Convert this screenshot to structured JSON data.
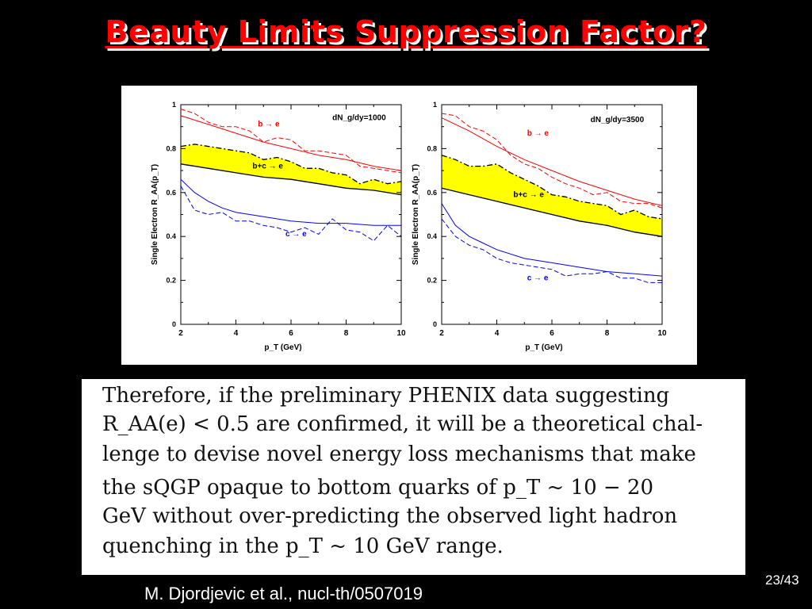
{
  "slide": {
    "title": "Beauty Limits Suppression Factor?",
    "citation": "M. Djordjevic et al., nucl-th/0507019",
    "page": "23/43"
  },
  "quote": {
    "lines": [
      "Therefore, if the preliminary PHENIX data suggesting",
      "R_AA(e) < 0.5 are confirmed, it will be a theoretical chal-",
      "lenge to devise novel energy loss mechanisms that make",
      "the sQGP opaque to bottom quarks of p_T ~ 10 − 20",
      "GeV without over-predicting the observed light hadron",
      "quenching in the p_T ~ 10 GeV range."
    ]
  },
  "colors": {
    "title": "#ff0000",
    "b_e": "#ff0000",
    "c_e": "#0000ff",
    "band": "#ffff00"
  },
  "chart_data": [
    {
      "type": "line",
      "annotation": "dN_g/dy=1000",
      "xlabel": "p_T (GeV)",
      "ylabel": "Single Electron R_AA(p_T)",
      "xlim": [
        2,
        10
      ],
      "ylim": [
        0,
        1
      ],
      "xticks": [
        2,
        4,
        6,
        8,
        10
      ],
      "yticks": [
        0,
        0.2,
        0.4,
        0.6,
        0.8,
        1
      ],
      "series": [
        {
          "name": "b → e",
          "style": "solid",
          "color": "#ff0000",
          "x": [
            2,
            3,
            4,
            5,
            6,
            7,
            8,
            9,
            10
          ],
          "y": [
            0.95,
            0.91,
            0.87,
            0.83,
            0.8,
            0.77,
            0.75,
            0.72,
            0.7
          ]
        },
        {
          "name": "b → e",
          "style": "dashed",
          "color": "#ff0000",
          "x": [
            2,
            2.5,
            3,
            3.5,
            4,
            4.5,
            5,
            5.5,
            6,
            6.5,
            7,
            7.5,
            8,
            8.5,
            9,
            9.5,
            10
          ],
          "y": [
            0.98,
            0.96,
            0.92,
            0.9,
            0.9,
            0.88,
            0.83,
            0.85,
            0.84,
            0.79,
            0.79,
            0.78,
            0.77,
            0.72,
            0.71,
            0.7,
            0.69
          ]
        },
        {
          "name": "b+c → e",
          "style": "dashdot",
          "color": "#000000",
          "x": [
            2,
            2.5,
            3,
            3.5,
            4,
            4.5,
            5,
            5.5,
            6,
            6.5,
            7,
            7.5,
            8,
            8.5,
            9,
            9.5,
            10
          ],
          "y": [
            0.81,
            0.82,
            0.81,
            0.8,
            0.79,
            0.78,
            0.75,
            0.76,
            0.74,
            0.71,
            0.71,
            0.69,
            0.68,
            0.64,
            0.66,
            0.64,
            0.65
          ]
        },
        {
          "name": "b+c → e",
          "style": "solid",
          "color": "#000000",
          "x": [
            2,
            3,
            4,
            5,
            6,
            7,
            8,
            9,
            10
          ],
          "y": [
            0.73,
            0.71,
            0.69,
            0.67,
            0.66,
            0.64,
            0.62,
            0.61,
            0.59
          ]
        },
        {
          "name": "c → e",
          "style": "solid",
          "color": "#0000ff",
          "x": [
            2,
            2.5,
            3,
            3.5,
            4,
            5,
            6,
            7,
            8,
            9,
            10
          ],
          "y": [
            0.66,
            0.6,
            0.56,
            0.53,
            0.51,
            0.49,
            0.47,
            0.46,
            0.46,
            0.45,
            0.45
          ]
        },
        {
          "name": "c → e",
          "style": "dashed",
          "color": "#0000ff",
          "x": [
            2,
            2.5,
            3,
            3.5,
            4,
            4.5,
            5,
            5.5,
            6,
            6.5,
            7,
            7.5,
            8,
            8.5,
            9,
            9.5,
            10
          ],
          "y": [
            0.63,
            0.52,
            0.5,
            0.51,
            0.47,
            0.47,
            0.45,
            0.44,
            0.42,
            0.44,
            0.41,
            0.48,
            0.43,
            0.42,
            0.38,
            0.45,
            0.4
          ]
        }
      ],
      "band": {
        "between": [
          "b+c → e dashed",
          "b+c → e solid"
        ],
        "fill": "#ffff00"
      },
      "labels": [
        {
          "text": "b → e",
          "x": 4.8,
          "y": 0.9,
          "color": "#ff0000"
        },
        {
          "text": "b+c → e",
          "x": 4.6,
          "y": 0.71,
          "color": "#000000"
        },
        {
          "text": "c → e",
          "x": 5.8,
          "y": 0.4,
          "color": "#0000ff"
        }
      ]
    },
    {
      "type": "line",
      "annotation": "dN_g/dy=3500",
      "xlabel": "p_T (GeV)",
      "ylabel": "Single Electron R_AA(p_T)",
      "xlim": [
        2,
        10
      ],
      "ylim": [
        0,
        1
      ],
      "xticks": [
        2,
        4,
        6,
        8,
        10
      ],
      "yticks": [
        0,
        0.2,
        0.4,
        0.6,
        0.8,
        1
      ],
      "series": [
        {
          "name": "b → e",
          "style": "solid",
          "color": "#ff0000",
          "x": [
            2,
            3,
            4,
            5,
            6,
            7,
            8,
            9,
            10
          ],
          "y": [
            0.94,
            0.88,
            0.81,
            0.75,
            0.7,
            0.65,
            0.61,
            0.57,
            0.54
          ]
        },
        {
          "name": "b → e",
          "style": "dashed",
          "color": "#ff0000",
          "x": [
            2,
            2.5,
            3,
            3.5,
            4,
            4.5,
            5,
            5.5,
            6,
            6.5,
            7,
            7.5,
            8,
            8.5,
            9,
            9.5,
            10
          ],
          "y": [
            0.96,
            0.95,
            0.9,
            0.88,
            0.84,
            0.77,
            0.73,
            0.71,
            0.67,
            0.64,
            0.62,
            0.59,
            0.6,
            0.56,
            0.55,
            0.55,
            0.53
          ]
        },
        {
          "name": "b+c → e",
          "style": "dashdot",
          "color": "#000000",
          "x": [
            2,
            2.5,
            3,
            3.5,
            4,
            4.5,
            5,
            5.5,
            6,
            6.5,
            7,
            7.5,
            8,
            8.5,
            9,
            9.5,
            10
          ],
          "y": [
            0.77,
            0.75,
            0.72,
            0.72,
            0.73,
            0.69,
            0.66,
            0.63,
            0.59,
            0.58,
            0.56,
            0.55,
            0.54,
            0.5,
            0.52,
            0.49,
            0.48
          ]
        },
        {
          "name": "b+c → e",
          "style": "solid",
          "color": "#000000",
          "x": [
            2,
            3,
            4,
            5,
            6,
            7,
            8,
            9,
            10
          ],
          "y": [
            0.62,
            0.59,
            0.56,
            0.53,
            0.5,
            0.47,
            0.45,
            0.42,
            0.4
          ]
        },
        {
          "name": "c → e",
          "style": "solid",
          "color": "#0000ff",
          "x": [
            2,
            2.5,
            3,
            3.5,
            4,
            5,
            6,
            7,
            8,
            9,
            10
          ],
          "y": [
            0.55,
            0.45,
            0.4,
            0.37,
            0.34,
            0.3,
            0.28,
            0.26,
            0.24,
            0.23,
            0.22
          ]
        },
        {
          "name": "c → e",
          "style": "dashed",
          "color": "#0000ff",
          "x": [
            2,
            2.5,
            3,
            3.5,
            4,
            4.5,
            5,
            5.5,
            6,
            6.5,
            7,
            7.5,
            8,
            8.5,
            9,
            9.5,
            10
          ],
          "y": [
            0.48,
            0.4,
            0.36,
            0.34,
            0.3,
            0.28,
            0.27,
            0.26,
            0.25,
            0.22,
            0.23,
            0.23,
            0.24,
            0.21,
            0.21,
            0.19,
            0.19
          ]
        }
      ],
      "band": {
        "between": [
          "b+c → e dashed",
          "b+c → e solid"
        ],
        "fill": "#ffff00"
      },
      "labels": [
        {
          "text": "b → e",
          "x": 5.1,
          "y": 0.86,
          "color": "#ff0000"
        },
        {
          "text": "b+c → e",
          "x": 4.6,
          "y": 0.58,
          "color": "#000000"
        },
        {
          "text": "c → e",
          "x": 5.1,
          "y": 0.2,
          "color": "#0000ff"
        }
      ]
    }
  ]
}
